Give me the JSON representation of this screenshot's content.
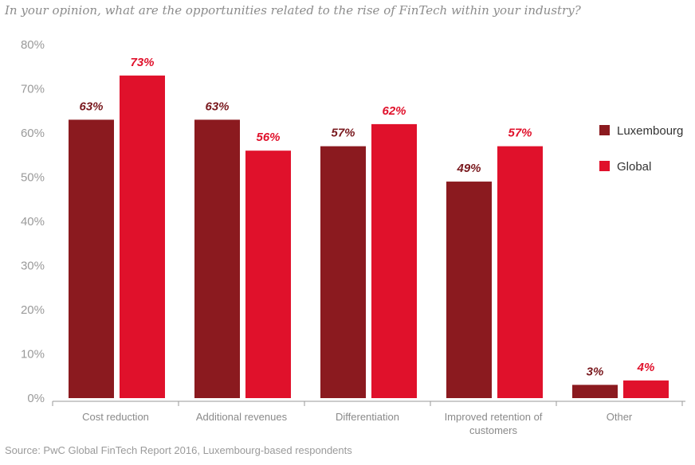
{
  "title": "In your opinion, what are the opportunities related to the rise of FinTech within your industry?",
  "source": "Source: PwC Global FinTech Report 2016, Luxembourg-based respondents",
  "chart_data": {
    "type": "bar",
    "categories": [
      "Cost reduction",
      "Additional revenues",
      "Differentiation",
      "Improved retention of customers",
      "Other"
    ],
    "category_lines": [
      [
        "Cost reduction"
      ],
      [
        "Additional revenues"
      ],
      [
        "Differentiation"
      ],
      [
        "Improved retention of",
        "customers"
      ],
      [
        "Other"
      ]
    ],
    "series": [
      {
        "name": "Luxembourg",
        "values": [
          63,
          63,
          57,
          49,
          3
        ],
        "color": "#8b1a1f",
        "labels": [
          "63%",
          "63%",
          "57%",
          "49%",
          "3%"
        ]
      },
      {
        "name": "Global",
        "values": [
          73,
          56,
          62,
          57,
          4
        ],
        "color": "#e0112b",
        "labels": [
          "73%",
          "56%",
          "62%",
          "57%",
          "4%"
        ]
      }
    ],
    "ylim": [
      0,
      80
    ],
    "yticks": [
      0,
      10,
      20,
      30,
      40,
      50,
      60,
      70,
      80
    ],
    "ytick_labels": [
      "0%",
      "10%",
      "20%",
      "30%",
      "40%",
      "50%",
      "60%",
      "70%",
      "80%"
    ],
    "xlabel": "",
    "ylabel": "",
    "grid": false,
    "legend_position": "right",
    "label_colors": {
      "Luxembourg": "#7a1a1f",
      "Global": "#e0112b"
    },
    "axis_color": "#9a9a9a"
  }
}
